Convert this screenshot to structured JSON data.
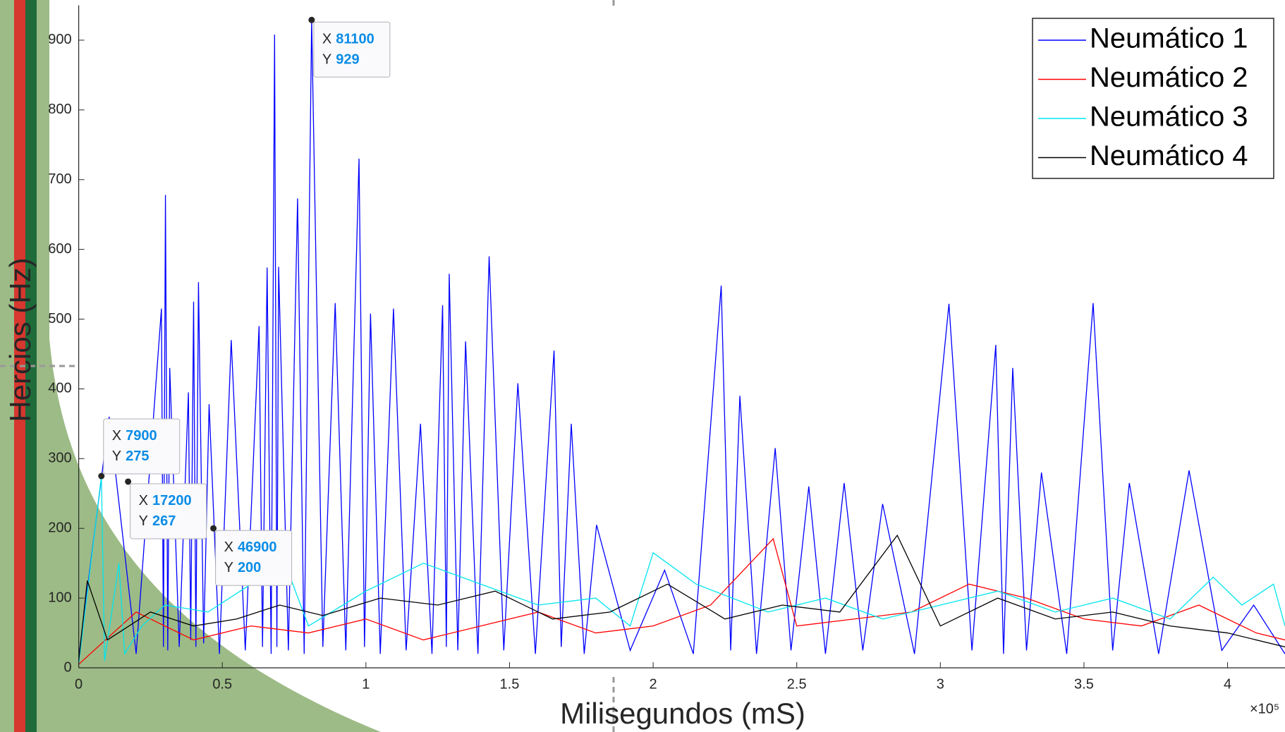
{
  "chart_data": {
    "type": "line",
    "xlabel": "Milisegundos (mS)",
    "ylabel": "Hercios (Hz)",
    "x_exponent_label": "×10⁵",
    "xlim": [
      0,
      420000
    ],
    "ylim": [
      0,
      950
    ],
    "xticks": [
      {
        "value": 0,
        "label": "0"
      },
      {
        "value": 50000,
        "label": "0.5"
      },
      {
        "value": 100000,
        "label": "1"
      },
      {
        "value": 150000,
        "label": "1.5"
      },
      {
        "value": 200000,
        "label": "2"
      },
      {
        "value": 250000,
        "label": "2.5"
      },
      {
        "value": 300000,
        "label": "3"
      },
      {
        "value": 350000,
        "label": "3.5"
      },
      {
        "value": 400000,
        "label": "4"
      }
    ],
    "yticks": [
      0,
      100,
      200,
      300,
      400,
      500,
      600,
      700,
      800,
      900
    ],
    "legend": "upper right",
    "series": [
      {
        "name": "Neumático 1",
        "color": "#0000ff",
        "x": [
          0,
          10600,
          20000,
          28800,
          29500,
          30200,
          31000,
          31700,
          35000,
          38200,
          39000,
          40000,
          40800,
          41700,
          43500,
          45400,
          49000,
          53100,
          58000,
          62800,
          64000,
          65600,
          67000,
          68200,
          69000,
          69600,
          73000,
          76200,
          78500,
          81100,
          85000,
          89300,
          93000,
          97600,
          99500,
          101600,
          105000,
          109600,
          114000,
          119000,
          123000,
          126700,
          128000,
          129000,
          132000,
          134700,
          139000,
          142900,
          148000,
          152900,
          159000,
          165500,
          168000,
          171500,
          176000,
          180300,
          192000,
          204000,
          214000,
          223700,
          227000,
          230200,
          236000,
          242500,
          248000,
          254200,
          260000,
          266500,
          273000,
          279900,
          291000,
          303000,
          311000,
          319300,
          322000,
          325200,
          330000,
          335200,
          344000,
          353200,
          360000,
          365800,
          376000,
          386600,
          398000,
          409100,
          420000
        ],
        "values": [
          15,
          360,
          20,
          515,
          30,
          678,
          25,
          430,
          30,
          395,
          40,
          525,
          30,
          553,
          35,
          378,
          20,
          470,
          25,
          490,
          30,
          574,
          20,
          908,
          30,
          575,
          25,
          673,
          20,
          929,
          30,
          523,
          25,
          730,
          30,
          508,
          20,
          515,
          25,
          350,
          20,
          520,
          30,
          565,
          25,
          468,
          20,
          590,
          25,
          408,
          20,
          455,
          30,
          350,
          20,
          205,
          25,
          140,
          20,
          548,
          25,
          390,
          20,
          315,
          25,
          260,
          20,
          265,
          25,
          235,
          20,
          522,
          25,
          463,
          20,
          430,
          25,
          280,
          20,
          523,
          25,
          265,
          20,
          283,
          25,
          90,
          20
        ]
      },
      {
        "name": "Neumático 2",
        "color": "#ff0000",
        "x": [
          0,
          20000,
          40000,
          60000,
          80000,
          100000,
          120000,
          140000,
          160000,
          180000,
          200000,
          220000,
          241800,
          250000,
          270000,
          290000,
          310000,
          330000,
          350000,
          370000,
          390000,
          410000,
          420000
        ],
        "values": [
          5,
          80,
          40,
          60,
          50,
          70,
          40,
          60,
          80,
          50,
          60,
          90,
          185,
          60,
          70,
          80,
          120,
          100,
          70,
          60,
          90,
          50,
          40
        ]
      },
      {
        "name": "Neumático 3",
        "color": "#00e5ee",
        "x": [
          0,
          7900,
          9000,
          14000,
          16000,
          22000,
          30000,
          45000,
          60000,
          70000,
          80000,
          100000,
          120000,
          140000,
          160000,
          180000,
          192000,
          200000,
          215000,
          240000,
          260000,
          280000,
          300000,
          320000,
          340000,
          360000,
          380000,
          395000,
          405000,
          416000,
          420000
        ],
        "values": [
          5,
          275,
          10,
          150,
          20,
          60,
          90,
          80,
          120,
          170,
          60,
          110,
          150,
          120,
          90,
          100,
          60,
          165,
          120,
          80,
          100,
          70,
          90,
          110,
          80,
          100,
          70,
          130,
          90,
          120,
          60
        ]
      },
      {
        "name": "Neumático 4",
        "color": "#000000",
        "x": [
          0,
          3000,
          10000,
          25000,
          40000,
          55000,
          70000,
          85000,
          105000,
          125000,
          145000,
          165000,
          185000,
          205000,
          225000,
          245000,
          265000,
          285000,
          300000,
          320000,
          340000,
          360000,
          380000,
          400000,
          420000
        ],
        "values": [
          10,
          125,
          40,
          80,
          60,
          70,
          90,
          75,
          100,
          90,
          110,
          70,
          80,
          120,
          70,
          90,
          80,
          190,
          60,
          100,
          70,
          80,
          60,
          50,
          30
        ]
      }
    ],
    "data_tip_x_label": "X",
    "data_tip_y_label": "Y",
    "data_tips": [
      {
        "x": 7900,
        "y": 275
      },
      {
        "x": 17200,
        "y": 267
      },
      {
        "x": 46900,
        "y": 200
      },
      {
        "x": 81100,
        "y": 929
      }
    ]
  }
}
